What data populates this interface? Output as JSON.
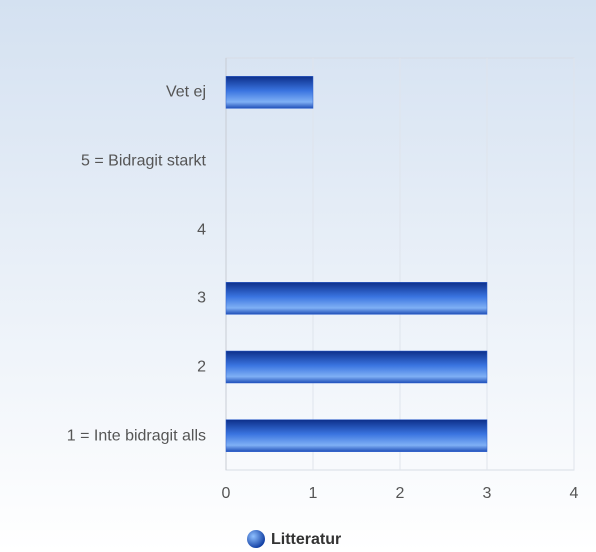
{
  "chart_data": {
    "type": "bar",
    "orientation": "horizontal",
    "categories": [
      "Vet ej",
      "5 = Bidragit starkt",
      "4",
      "3",
      "2",
      "1 = Inte bidragit alls"
    ],
    "series": [
      {
        "name": "Litteratur",
        "color": "#2a5fd0",
        "values": [
          1,
          0,
          0,
          3,
          3,
          3
        ]
      }
    ],
    "xlim": [
      0,
      4
    ],
    "xticks": [
      0,
      1,
      2,
      3,
      4
    ],
    "grid": true,
    "legend": "bottom"
  }
}
